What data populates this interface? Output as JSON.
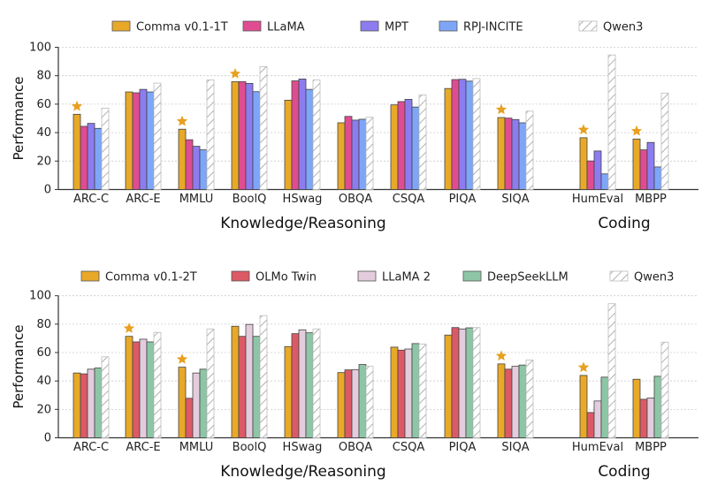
{
  "chart_data": [
    {
      "type": "bar",
      "ylabel": "Performance",
      "ylim": [
        0,
        100
      ],
      "yticks": [
        "0",
        "20",
        "40",
        "60",
        "80",
        "100"
      ],
      "grid": true,
      "legend_position": "top",
      "categories": [
        "ARC-C",
        "ARC-E",
        "MMLU",
        "BoolQ",
        "HSwag",
        "OBQA",
        "CSQA",
        "PIQA",
        "SIQA",
        "HumEval",
        "MBPP"
      ],
      "groups": [
        {
          "label": "Knowledge/Reasoning",
          "count": 9
        },
        {
          "label": "Coding",
          "count": 2
        }
      ],
      "starred": [
        "ARC-C",
        "MMLU",
        "BoolQ",
        "SIQA",
        "HumEval",
        "MBPP"
      ],
      "star_color": "#E8A020",
      "series": [
        {
          "name": "Comma v0.1-1T",
          "color": "#E8A928",
          "hatched": false,
          "values": [
            52.9,
            68.6,
            42.4,
            75.8,
            62.8,
            46.9,
            59.5,
            71.0,
            50.6,
            36.4,
            35.5
          ]
        },
        {
          "name": "LLaMA",
          "color": "#E04C92",
          "hatched": false,
          "values": [
            44.4,
            68.0,
            35.0,
            75.8,
            76.4,
            51.4,
            61.8,
            77.3,
            50.2,
            20.1,
            27.9
          ]
        },
        {
          "name": "MPT",
          "color": "#8C7CF0",
          "hatched": false,
          "values": [
            46.5,
            70.4,
            30.4,
            74.6,
            77.7,
            48.8,
            63.4,
            77.5,
            49.2,
            27.1,
            33.1
          ]
        },
        {
          "name": "RPJ-INCITE",
          "color": "#7EA6F8",
          "hatched": false,
          "values": [
            43.0,
            68.6,
            27.9,
            68.8,
            70.4,
            49.4,
            58.0,
            76.2,
            46.9,
            11.0,
            15.9
          ]
        },
        {
          "name": "Qwen3",
          "color": "#ffffff",
          "hatched": true,
          "values": [
            57.2,
            74.8,
            77.0,
            86.4,
            77.0,
            50.8,
            66.5,
            78.0,
            55.1,
            94.6,
            67.8
          ]
        }
      ]
    },
    {
      "type": "bar",
      "ylabel": "Performance",
      "ylim": [
        0,
        100
      ],
      "yticks": [
        "0",
        "20",
        "40",
        "60",
        "80",
        "100"
      ],
      "grid": true,
      "legend_position": "top",
      "categories": [
        "ARC-C",
        "ARC-E",
        "MMLU",
        "BoolQ",
        "HSwag",
        "OBQA",
        "CSQA",
        "PIQA",
        "SIQA",
        "HumEval",
        "MBPP"
      ],
      "groups": [
        {
          "label": "Knowledge/Reasoning",
          "count": 9
        },
        {
          "label": "Coding",
          "count": 2
        }
      ],
      "starred": [
        "ARC-E",
        "MMLU",
        "SIQA",
        "HumEval"
      ],
      "star_color": "#E8A020",
      "series": [
        {
          "name": "Comma v0.1-2T",
          "color": "#E8A928",
          "hatched": false,
          "values": [
            45.6,
            71.4,
            49.7,
            78.5,
            64.2,
            45.9,
            63.8,
            72.3,
            52.0,
            43.9,
            41.2
          ]
        },
        {
          "name": "OLMo Twin",
          "color": "#DC5A66",
          "hatched": false,
          "values": [
            45.0,
            67.5,
            27.8,
            71.4,
            73.3,
            47.8,
            61.7,
            77.6,
            48.3,
            17.8,
            27.1
          ]
        },
        {
          "name": "LLaMA 2",
          "color": "#E3CCDD",
          "hatched": false,
          "values": [
            48.3,
            69.4,
            45.6,
            79.8,
            76.0,
            48.0,
            62.5,
            76.6,
            50.3,
            25.9,
            28.0
          ]
        },
        {
          "name": "DeepSeekLLM",
          "color": "#8DC6A6",
          "hatched": false,
          "values": [
            49.1,
            67.5,
            48.3,
            71.4,
            73.9,
            51.6,
            66.3,
            77.4,
            51.2,
            42.7,
            43.3
          ]
        },
        {
          "name": "Qwen3",
          "color": "#ffffff",
          "hatched": true,
          "values": [
            57.0,
            74.2,
            76.6,
            86.0,
            76.6,
            50.3,
            66.0,
            77.6,
            54.7,
            94.4,
            67.3
          ]
        }
      ]
    }
  ]
}
